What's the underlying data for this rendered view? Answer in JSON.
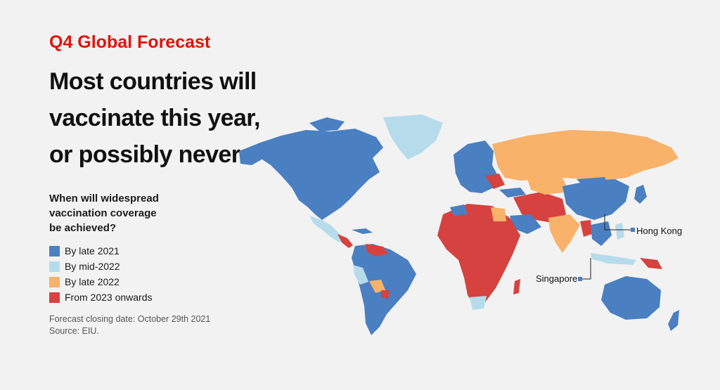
{
  "header": {
    "kicker": "Q4 Global Forecast",
    "title_lines": [
      "Most countries will",
      "vaccinate this year,",
      "or possibly never"
    ]
  },
  "legend": {
    "question_lines": [
      "When will widespread",
      "vaccination coverage",
      "be achieved?"
    ],
    "items": [
      {
        "label": "By late 2021",
        "color": "#4a7fc1"
      },
      {
        "label": "By mid-2022",
        "color": "#b6dcec"
      },
      {
        "label": "By late 2022",
        "color": "#f8b26a"
      },
      {
        "label": "From 2023 onwards",
        "color": "#d5423f"
      }
    ]
  },
  "footnote": {
    "forecast_date": "Forecast closing date: October 29th 2021",
    "source": "Source: EIU."
  },
  "callouts": {
    "hong_kong": "Hong Kong",
    "singapore": "Singapore"
  }
}
